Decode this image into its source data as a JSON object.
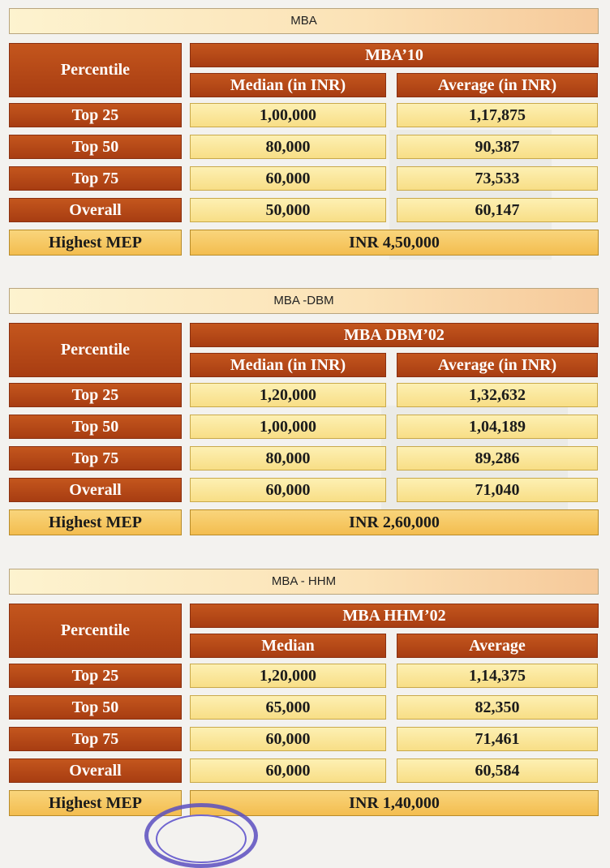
{
  "tables": [
    {
      "heading": "MBA",
      "program": "MBA’10",
      "percentile_label": "Percentile",
      "col1": "Median (in INR)",
      "col2": "Average (in INR)",
      "rows": [
        {
          "label": "Top 25",
          "median": "1,00,000",
          "average": "1,17,875"
        },
        {
          "label": "Top 50",
          "median": "80,000",
          "average": "90,387"
        },
        {
          "label": "Top 75",
          "median": "60,000",
          "average": "73,533"
        },
        {
          "label": "Overall",
          "median": "50,000",
          "average": "60,147"
        }
      ],
      "highest_label": "Highest MEP",
      "highest_value": "INR 4,50,000"
    },
    {
      "heading": "MBA -DBM",
      "program": "MBA DBM’02",
      "percentile_label": "Percentile",
      "col1": "Median (in INR)",
      "col2": "Average (in INR)",
      "rows": [
        {
          "label": "Top 25",
          "median": "1,20,000",
          "average": "1,32,632"
        },
        {
          "label": "Top 50",
          "median": "1,00,000",
          "average": "1,04,189"
        },
        {
          "label": "Top 75",
          "median": "80,000",
          "average": "89,286"
        },
        {
          "label": "Overall",
          "median": "60,000",
          "average": "71,040"
        }
      ],
      "highest_label": "Highest MEP",
      "highest_value": "INR 2,60,000"
    },
    {
      "heading": "MBA - HHM",
      "program": "MBA HHM’02",
      "percentile_label": "Percentile",
      "col1": "Median",
      "col2": "Average",
      "rows": [
        {
          "label": "Top 25",
          "median": "1,20,000",
          "average": "1,14,375"
        },
        {
          "label": "Top 50",
          "median": "65,000",
          "average": "82,350"
        },
        {
          "label": "Top 75",
          "median": "60,000",
          "average": "71,461"
        },
        {
          "label": "Overall",
          "median": "60,000",
          "average": "60,584"
        }
      ],
      "highest_label": "Highest MEP",
      "highest_value": "INR 1,40,000"
    }
  ]
}
